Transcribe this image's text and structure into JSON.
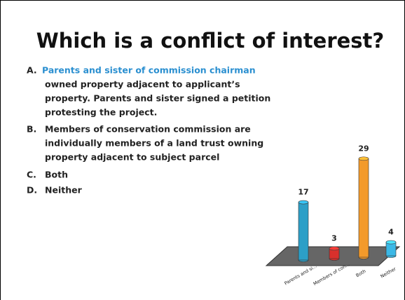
{
  "slide": {
    "options": [
      {
        "letter": "A.",
        "lines": [
          "Parents and sister of commission chairman",
          "owned property adjacent to applicant’s",
          "property. Parents and sister signed a petition",
          "protesting the project."
        ]
      },
      {
        "letter": "B.",
        "lines": [
          "Members of conservation commission are",
          "individually members of a land trust owning",
          "property adjacent to subject parcel"
        ]
      },
      {
        "letter": "C.",
        "lines": [
          "Both"
        ]
      },
      {
        "letter": "D.",
        "lines": [
          "Neither"
        ]
      }
    ]
  },
  "chart_data": {
    "type": "bar3d",
    "title": "Which is a conflict of interest?",
    "categories": [
      "Parents and si...",
      "Members of con...",
      "Both",
      "Neither"
    ],
    "values": [
      17,
      3,
      29,
      4
    ],
    "colors": [
      "#2c9fc7",
      "#d9302c",
      "#f39a2b",
      "#3bb8e6"
    ]
  }
}
